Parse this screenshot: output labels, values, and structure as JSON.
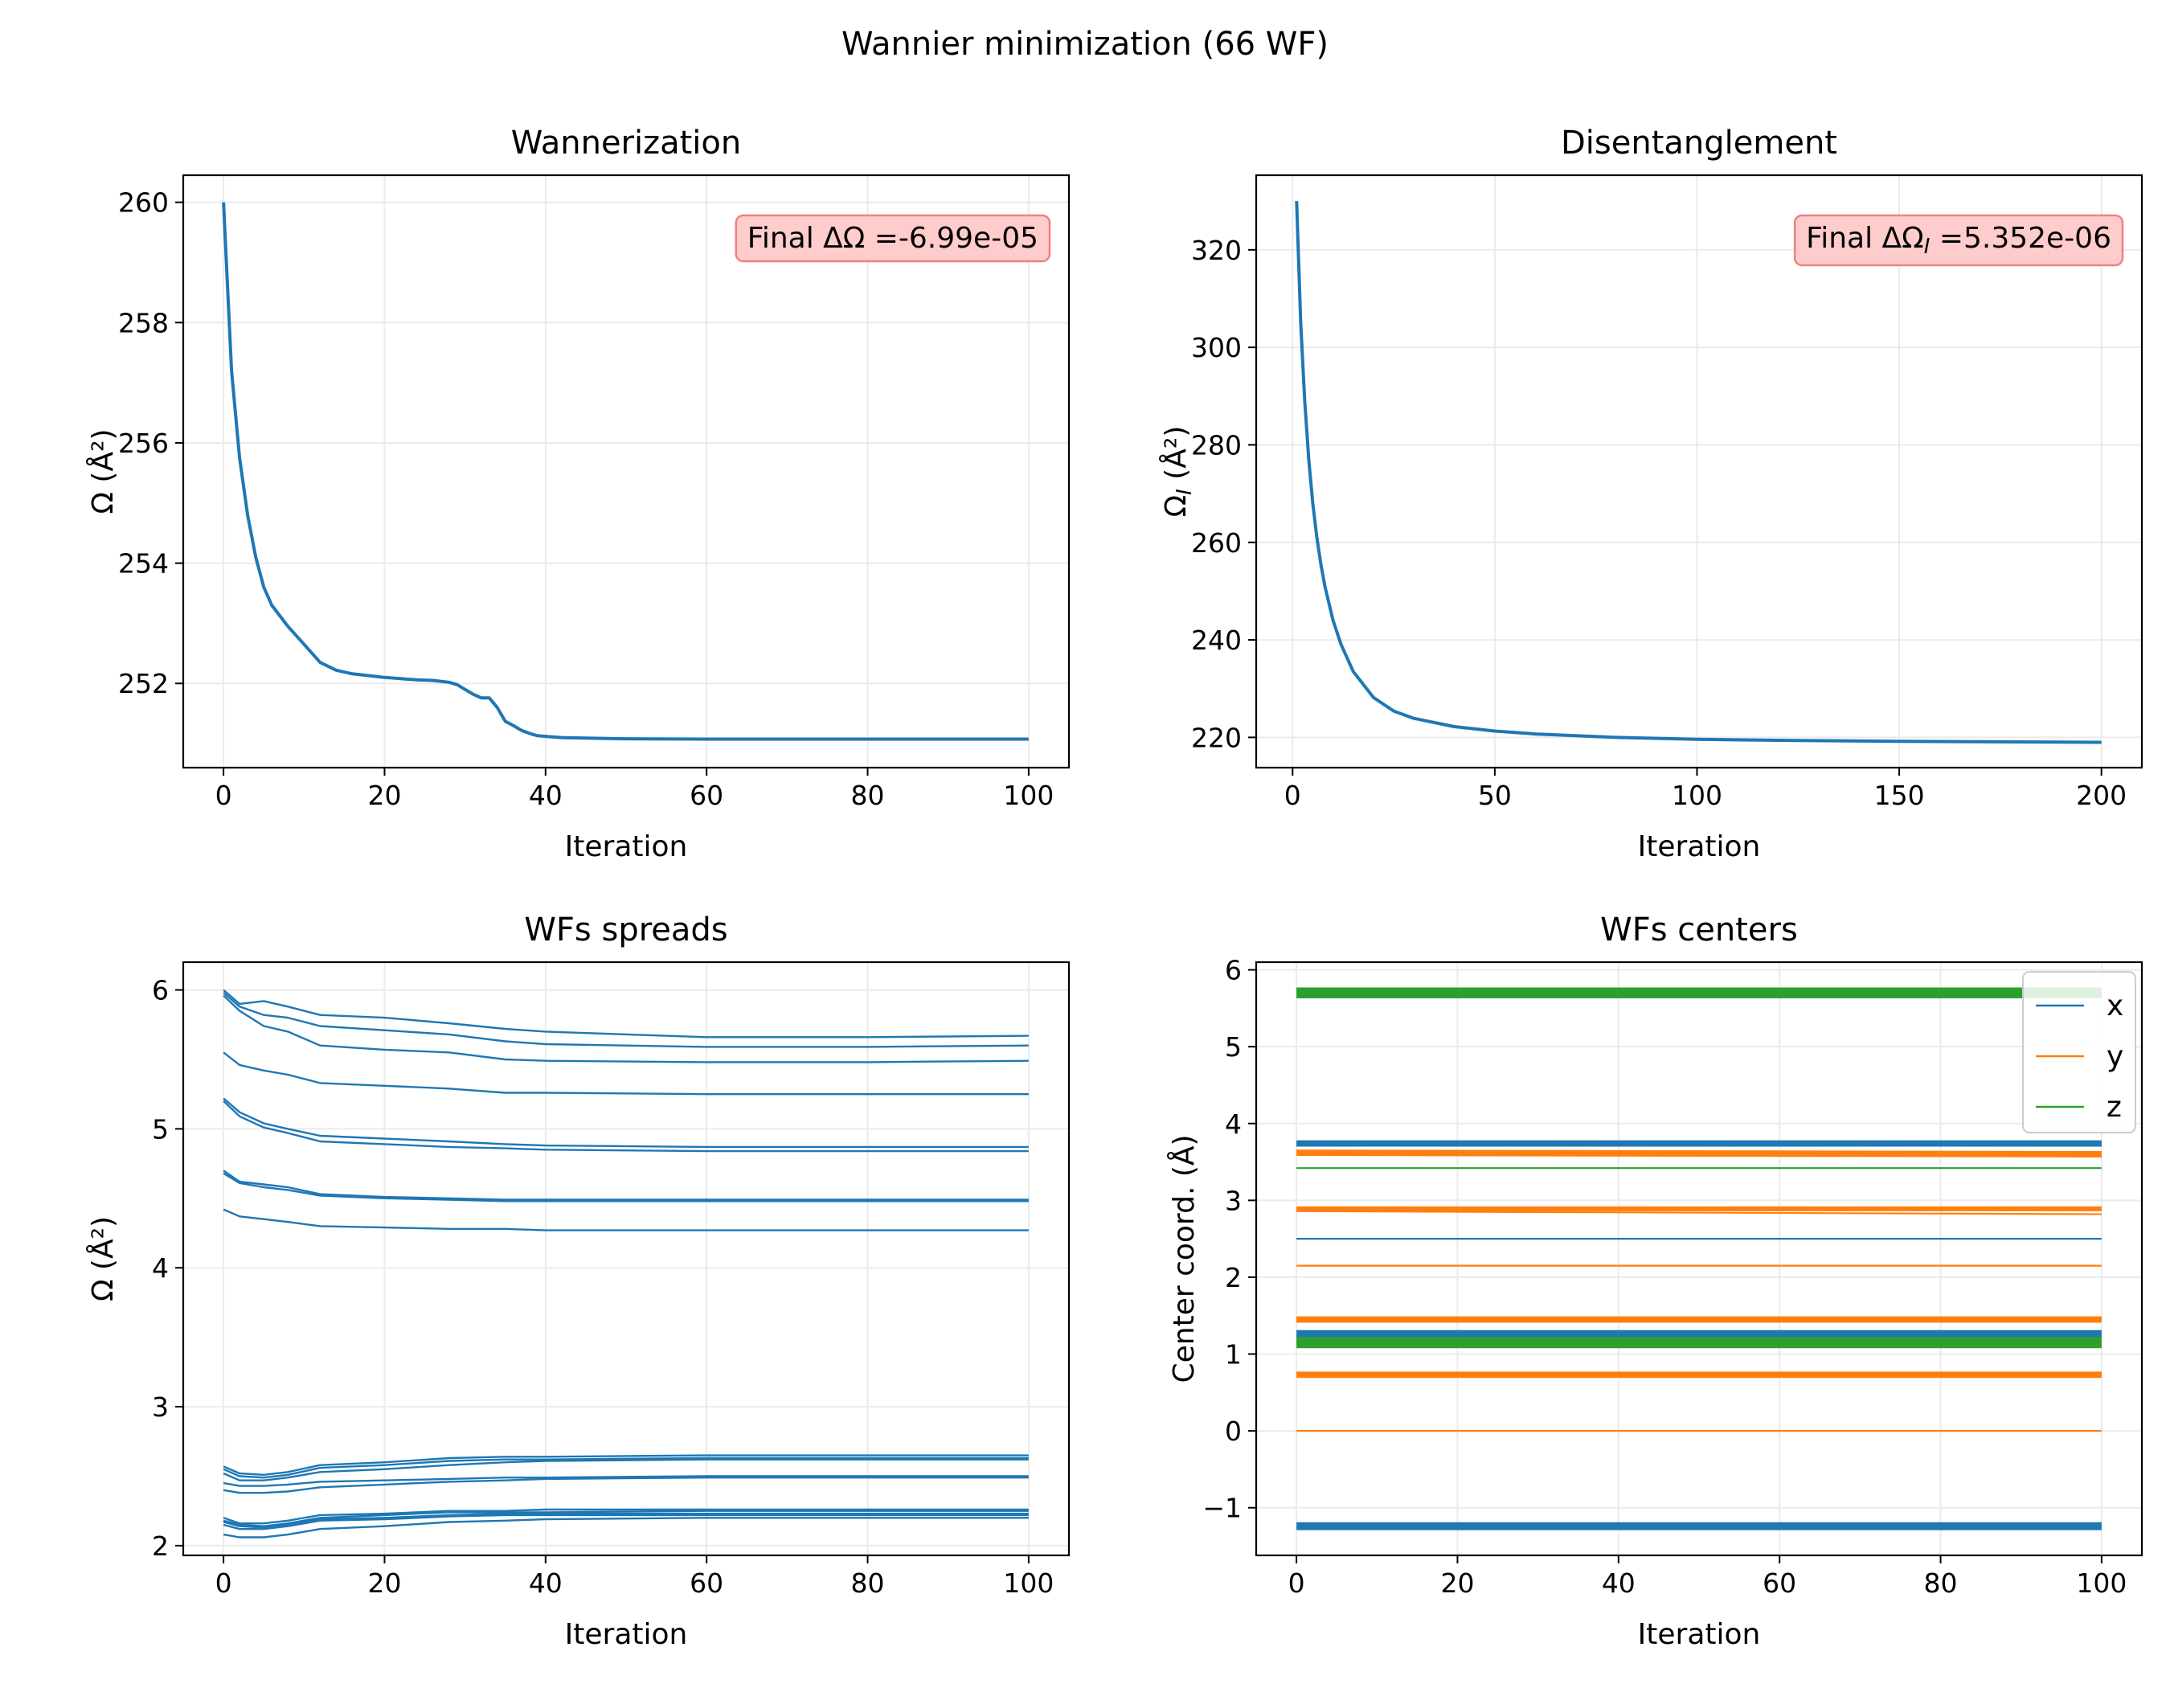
{
  "suptitle": "Wannier minimization (66 WF)",
  "colors": {
    "blue": "#1f77b4",
    "orange": "#ff7f0e",
    "green": "#2ca02c",
    "grid": "#ebebeb",
    "annot_face": "#ffcccc",
    "annot_edge": "#f08080"
  },
  "chart_data": [
    {
      "id": "wannerization",
      "type": "line",
      "title": "Wannerization",
      "xlabel": "Iteration",
      "ylabel": "Ω (Å²)",
      "xlim": [
        -5,
        105
      ],
      "ylim": [
        250.6,
        260.45
      ],
      "xticks": [
        0,
        20,
        40,
        60,
        80,
        100
      ],
      "yticks": [
        252,
        254,
        256,
        258,
        260
      ],
      "grid": true,
      "annotation": "Final ΔΩ =-6.99e-05",
      "annotation_position": "top-right",
      "series": [
        {
          "color": "#1f77b4",
          "x": [
            0,
            1,
            2,
            3,
            4,
            5,
            6,
            8,
            10,
            12,
            14,
            16,
            18,
            20,
            22,
            24,
            26,
            28,
            29,
            30,
            31,
            32,
            33,
            34,
            35,
            36,
            37,
            38,
            39,
            40,
            42,
            45,
            50,
            60,
            70,
            80,
            90,
            100
          ],
          "y": [
            260.0,
            257.2,
            255.75,
            254.8,
            254.1,
            253.6,
            253.3,
            252.95,
            252.65,
            252.35,
            252.22,
            252.16,
            252.13,
            252.1,
            252.08,
            252.06,
            252.05,
            252.02,
            251.98,
            251.9,
            251.82,
            251.76,
            251.76,
            251.6,
            251.37,
            251.3,
            251.22,
            251.17,
            251.13,
            251.12,
            251.1,
            251.09,
            251.08,
            251.075,
            251.075,
            251.075,
            251.075,
            251.075
          ]
        }
      ]
    },
    {
      "id": "disentanglement",
      "type": "line",
      "title": "Disentanglement",
      "xlabel": "Iteration",
      "ylabel": "Ω_I (Å²)",
      "xlim": [
        -9,
        210
      ],
      "ylim": [
        213.8,
        335.3
      ],
      "xticks": [
        0,
        50,
        100,
        150,
        200
      ],
      "yticks": [
        220,
        240,
        260,
        280,
        300,
        320
      ],
      "grid": true,
      "annotation": "Final ΔΩ_I =5.352e-06",
      "annotation_position": "top-right",
      "series": [
        {
          "color": "#1f77b4",
          "x": [
            1,
            2,
            3,
            4,
            5,
            6,
            7,
            8,
            10,
            12,
            15,
            20,
            25,
            30,
            40,
            50,
            60,
            80,
            100,
            125,
            150,
            175,
            200
          ],
          "y": [
            330,
            305,
            289,
            277,
            268,
            261,
            255.5,
            251,
            244,
            239,
            233.5,
            228.2,
            225.4,
            223.9,
            222.2,
            221.3,
            220.7,
            220,
            219.6,
            219.35,
            219.2,
            219.1,
            219.0
          ]
        }
      ]
    },
    {
      "id": "wfs-spreads",
      "type": "line",
      "title": "WFs spreads",
      "xlabel": "Iteration",
      "ylabel": "Ω (Å²)",
      "xlim": [
        -5,
        105
      ],
      "ylim": [
        1.93,
        6.2
      ],
      "xticks": [
        0,
        20,
        40,
        60,
        80,
        100
      ],
      "yticks": [
        2,
        3,
        4,
        5,
        6
      ],
      "grid": true,
      "x": [
        0,
        2,
        5,
        8,
        12,
        20,
        28,
        35,
        40,
        60,
        80,
        100
      ],
      "series": [
        {
          "color": "#1f77b4",
          "values": [
            6.0,
            5.9,
            5.92,
            5.88,
            5.82,
            5.8,
            5.76,
            5.72,
            5.7,
            5.66,
            5.66,
            5.67
          ]
        },
        {
          "color": "#1f77b4",
          "values": [
            5.98,
            5.88,
            5.82,
            5.8,
            5.74,
            5.71,
            5.68,
            5.63,
            5.61,
            5.59,
            5.59,
            5.6
          ]
        },
        {
          "color": "#1f77b4",
          "values": [
            5.96,
            5.85,
            5.74,
            5.7,
            5.6,
            5.57,
            5.55,
            5.5,
            5.49,
            5.48,
            5.48,
            5.49
          ]
        },
        {
          "color": "#1f77b4",
          "values": [
            5.55,
            5.46,
            5.42,
            5.39,
            5.33,
            5.31,
            5.29,
            5.26,
            5.26,
            5.25,
            5.25,
            5.25
          ]
        },
        {
          "color": "#1f77b4",
          "values": [
            5.22,
            5.12,
            5.04,
            5.0,
            4.95,
            4.93,
            4.91,
            4.89,
            4.88,
            4.87,
            4.87,
            4.87
          ]
        },
        {
          "color": "#1f77b4",
          "values": [
            5.2,
            5.09,
            5.01,
            4.97,
            4.91,
            4.89,
            4.87,
            4.86,
            4.85,
            4.84,
            4.84,
            4.84
          ]
        },
        {
          "color": "#1f77b4",
          "values": [
            4.7,
            4.62,
            4.6,
            4.58,
            4.53,
            4.51,
            4.5,
            4.49,
            4.49,
            4.49,
            4.49,
            4.49
          ]
        },
        {
          "color": "#1f77b4",
          "values": [
            4.68,
            4.61,
            4.58,
            4.56,
            4.52,
            4.5,
            4.49,
            4.48,
            4.48,
            4.48,
            4.48,
            4.48
          ]
        },
        {
          "color": "#1f77b4",
          "values": [
            4.42,
            4.37,
            4.35,
            4.33,
            4.3,
            4.29,
            4.28,
            4.28,
            4.27,
            4.27,
            4.27,
            4.27
          ]
        },
        {
          "color": "#1f77b4",
          "values": [
            2.57,
            2.52,
            2.51,
            2.53,
            2.58,
            2.6,
            2.63,
            2.64,
            2.64,
            2.65,
            2.65,
            2.65
          ]
        },
        {
          "color": "#1f77b4",
          "values": [
            2.55,
            2.5,
            2.49,
            2.51,
            2.56,
            2.58,
            2.61,
            2.62,
            2.62,
            2.63,
            2.63,
            2.63
          ]
        },
        {
          "color": "#1f77b4",
          "values": [
            2.52,
            2.47,
            2.47,
            2.49,
            2.53,
            2.55,
            2.58,
            2.6,
            2.61,
            2.62,
            2.62,
            2.62
          ]
        },
        {
          "color": "#1f77b4",
          "values": [
            2.45,
            2.43,
            2.43,
            2.44,
            2.46,
            2.47,
            2.48,
            2.49,
            2.49,
            2.5,
            2.5,
            2.5
          ]
        },
        {
          "color": "#1f77b4",
          "values": [
            2.4,
            2.38,
            2.38,
            2.39,
            2.42,
            2.44,
            2.46,
            2.47,
            2.48,
            2.49,
            2.49,
            2.49
          ]
        },
        {
          "color": "#1f77b4",
          "values": [
            2.2,
            2.16,
            2.16,
            2.18,
            2.22,
            2.23,
            2.25,
            2.25,
            2.26,
            2.26,
            2.26,
            2.26
          ]
        },
        {
          "color": "#1f77b4",
          "values": [
            2.18,
            2.15,
            2.14,
            2.16,
            2.2,
            2.22,
            2.24,
            2.24,
            2.24,
            2.25,
            2.25,
            2.25
          ]
        },
        {
          "color": "#1f77b4",
          "values": [
            2.17,
            2.14,
            2.13,
            2.15,
            2.19,
            2.2,
            2.22,
            2.23,
            2.23,
            2.23,
            2.23,
            2.23
          ]
        },
        {
          "color": "#1f77b4",
          "values": [
            2.15,
            2.12,
            2.12,
            2.14,
            2.18,
            2.19,
            2.21,
            2.22,
            2.22,
            2.22,
            2.22,
            2.22
          ]
        },
        {
          "color": "#1f77b4",
          "values": [
            2.08,
            2.06,
            2.06,
            2.08,
            2.12,
            2.14,
            2.17,
            2.18,
            2.19,
            2.2,
            2.2,
            2.2
          ]
        }
      ]
    },
    {
      "id": "wfs-centers",
      "type": "line",
      "title": "WFs centers",
      "xlabel": "Iteration",
      "ylabel": "Center coord. (Å)",
      "xlim": [
        -5,
        105
      ],
      "ylim": [
        -1.62,
        6.1
      ],
      "xticks": [
        0,
        20,
        40,
        60,
        80,
        100
      ],
      "yticks": [
        -1,
        0,
        1,
        2,
        3,
        4,
        5,
        6
      ],
      "grid": true,
      "legend": {
        "placement": "top-right",
        "entries": [
          {
            "label": "x",
            "color": "#1f77b4"
          },
          {
            "label": "y",
            "color": "#ff7f0e"
          },
          {
            "label": "z",
            "color": "#2ca02c"
          }
        ]
      },
      "bands": [
        {
          "group": "z",
          "color": "#2ca02c",
          "y0": 5.7,
          "y1": 5.7,
          "count": 12
        },
        {
          "group": "x",
          "color": "#1f77b4",
          "y0": 3.74,
          "y1": 3.74,
          "count": 6
        },
        {
          "group": "y",
          "color": "#ff7f0e",
          "y0": 3.62,
          "y1": 3.6,
          "count": 6
        },
        {
          "group": "z",
          "color": "#2ca02c",
          "y0": 3.42,
          "y1": 3.42,
          "count": 1
        },
        {
          "group": "y",
          "color": "#ff7f0e",
          "y0": 2.89,
          "y1": 2.89,
          "count": 4
        },
        {
          "group": "y",
          "color": "#ff7f0e",
          "y0": 2.86,
          "y1": 2.82,
          "count": 1
        },
        {
          "group": "x",
          "color": "#1f77b4",
          "y0": 2.5,
          "y1": 2.5,
          "count": 1
        },
        {
          "group": "y",
          "color": "#ff7f0e",
          "y0": 2.15,
          "y1": 2.15,
          "count": 1
        },
        {
          "group": "y",
          "color": "#ff7f0e",
          "y0": 1.46,
          "y1": 1.46,
          "count": 4
        },
        {
          "group": "y",
          "color": "#ff7f0e",
          "y0": 1.42,
          "y1": 1.42,
          "count": 1
        },
        {
          "group": "x",
          "color": "#1f77b4",
          "y0": 1.26,
          "y1": 1.26,
          "count": 8
        },
        {
          "group": "z",
          "color": "#2ca02c",
          "y0": 1.15,
          "y1": 1.15,
          "count": 16
        },
        {
          "group": "y",
          "color": "#ff7f0e",
          "y0": 0.73,
          "y1": 0.73,
          "count": 6
        },
        {
          "group": "y",
          "color": "#ff7f0e",
          "y0": 0.0,
          "y1": 0.0,
          "count": 1
        },
        {
          "group": "x",
          "color": "#1f77b4",
          "y0": -1.24,
          "y1": -1.24,
          "count": 8
        }
      ]
    }
  ]
}
